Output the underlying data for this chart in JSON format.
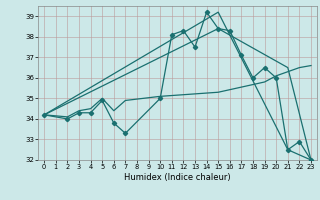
{
  "title": "",
  "xlabel": "Humidex (Indice chaleur)",
  "bg_color": "#cce8e8",
  "line_color": "#1a7070",
  "xlim": [
    -0.5,
    23.5
  ],
  "ylim": [
    32,
    39.5
  ],
  "yticks": [
    32,
    33,
    34,
    35,
    36,
    37,
    38,
    39
  ],
  "xticks": [
    0,
    1,
    2,
    3,
    4,
    5,
    6,
    7,
    8,
    9,
    10,
    11,
    12,
    13,
    14,
    15,
    16,
    17,
    18,
    19,
    20,
    21,
    22,
    23
  ],
  "series0_x": [
    0,
    2,
    3,
    4,
    5,
    6,
    7,
    10,
    11,
    12,
    13,
    14,
    15,
    16,
    17,
    18,
    19,
    20,
    21,
    22,
    23
  ],
  "series0_y": [
    34.2,
    34.0,
    34.3,
    34.3,
    34.9,
    33.8,
    33.3,
    35.0,
    38.1,
    38.3,
    37.5,
    39.2,
    38.4,
    38.3,
    37.1,
    36.0,
    36.5,
    36.0,
    32.5,
    32.9,
    32.0
  ],
  "series1_x": [
    0,
    2,
    3,
    4,
    5,
    6,
    7,
    10,
    15,
    19,
    20,
    22,
    23
  ],
  "series1_y": [
    34.2,
    34.1,
    34.4,
    34.5,
    35.0,
    34.4,
    34.9,
    35.1,
    35.3,
    35.8,
    36.1,
    36.5,
    36.6
  ],
  "series2_x": [
    0,
    15,
    21,
    23
  ],
  "series2_y": [
    34.2,
    39.2,
    32.5,
    32.0
  ],
  "series3_x": [
    0,
    15,
    21,
    23
  ],
  "series3_y": [
    34.2,
    38.4,
    36.5,
    32.0
  ]
}
